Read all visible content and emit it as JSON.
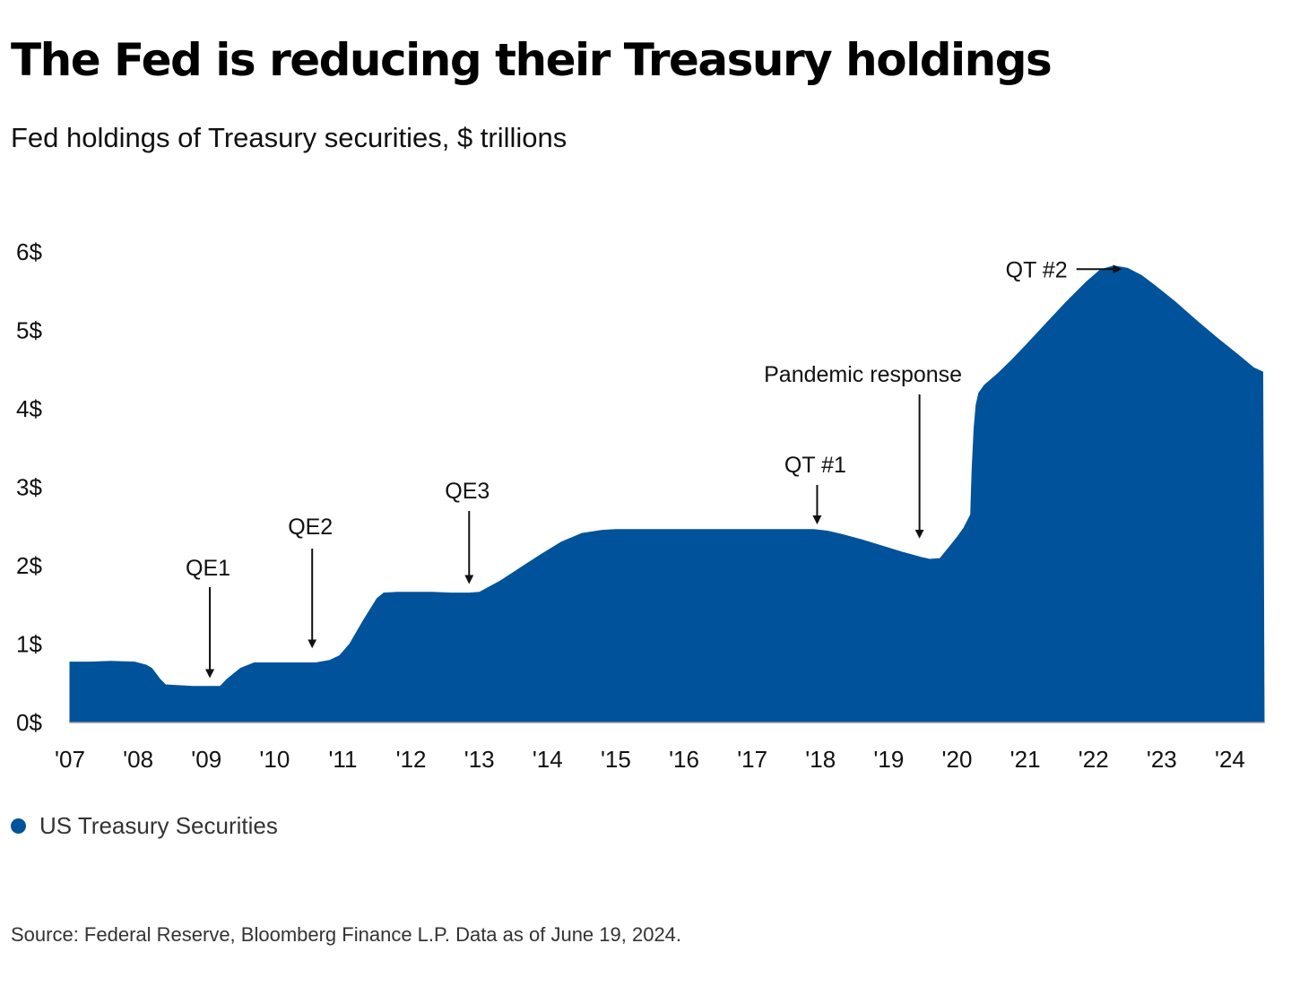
{
  "chart_data": {
    "type": "area",
    "title": "The Fed is reducing their Treasury holdings",
    "subtitle": "Fed holdings of Treasury securities, $ trillions",
    "xlabel": "",
    "ylabel": "",
    "ylim": [
      0,
      6
    ],
    "xlim": [
      2007.0,
      2024.5
    ],
    "grid": false,
    "y_ticks": [
      {
        "value": 0,
        "label": "0$"
      },
      {
        "value": 1,
        "label": "1$"
      },
      {
        "value": 2,
        "label": "2$"
      },
      {
        "value": 3,
        "label": "3$"
      },
      {
        "value": 4,
        "label": "4$"
      },
      {
        "value": 5,
        "label": "5$"
      },
      {
        "value": 6,
        "label": "6$"
      }
    ],
    "x_ticks": [
      {
        "value": 2007,
        "label": "'07"
      },
      {
        "value": 2008,
        "label": "'08"
      },
      {
        "value": 2009,
        "label": "'09"
      },
      {
        "value": 2010,
        "label": "'10"
      },
      {
        "value": 2011,
        "label": "'11"
      },
      {
        "value": 2012,
        "label": "'12"
      },
      {
        "value": 2013,
        "label": "'13"
      },
      {
        "value": 2014,
        "label": "'14"
      },
      {
        "value": 2015,
        "label": "'15"
      },
      {
        "value": 2016,
        "label": "'16"
      },
      {
        "value": 2017,
        "label": "'17"
      },
      {
        "value": 2018,
        "label": "'18"
      },
      {
        "value": 2019,
        "label": "'19"
      },
      {
        "value": 2020,
        "label": "'20"
      },
      {
        "value": 2021,
        "label": "'21"
      },
      {
        "value": 2022,
        "label": "'22"
      },
      {
        "value": 2023,
        "label": "'23"
      },
      {
        "value": 2024,
        "label": "'24"
      }
    ],
    "series": [
      {
        "name": "US Treasury Securities",
        "color": "#00529b",
        "x": [
          2007.0,
          2007.3,
          2007.6,
          2007.95,
          2008.12,
          2008.2,
          2008.32,
          2008.4,
          2008.6,
          2008.8,
          2009.0,
          2009.2,
          2009.3,
          2009.5,
          2009.7,
          2010.0,
          2010.3,
          2010.6,
          2010.8,
          2010.95,
          2011.1,
          2011.3,
          2011.5,
          2011.6,
          2011.8,
          2012.0,
          2012.3,
          2012.6,
          2012.85,
          2013.0,
          2013.3,
          2013.6,
          2013.9,
          2014.2,
          2014.5,
          2014.8,
          2015.0,
          2015.5,
          2016.0,
          2016.5,
          2017.0,
          2017.5,
          2017.9,
          2018.1,
          2018.3,
          2018.6,
          2018.9,
          2019.2,
          2019.5,
          2019.6,
          2019.75,
          2019.9,
          2020.0,
          2020.1,
          2020.2,
          2020.22,
          2020.25,
          2020.28,
          2020.32,
          2020.4,
          2020.6,
          2020.8,
          2021.0,
          2021.3,
          2021.6,
          2021.9,
          2022.1,
          2022.3,
          2022.5,
          2022.7,
          2022.9,
          2023.2,
          2023.5,
          2023.8,
          2024.1,
          2024.35,
          2024.48,
          2024.5
        ],
        "values": [
          0.77,
          0.77,
          0.78,
          0.77,
          0.73,
          0.69,
          0.55,
          0.48,
          0.47,
          0.46,
          0.46,
          0.46,
          0.55,
          0.69,
          0.76,
          0.76,
          0.76,
          0.76,
          0.79,
          0.85,
          1.0,
          1.3,
          1.58,
          1.65,
          1.66,
          1.66,
          1.66,
          1.65,
          1.65,
          1.66,
          1.8,
          1.97,
          2.14,
          2.3,
          2.41,
          2.45,
          2.46,
          2.46,
          2.46,
          2.46,
          2.46,
          2.46,
          2.46,
          2.44,
          2.4,
          2.33,
          2.25,
          2.17,
          2.1,
          2.08,
          2.09,
          2.25,
          2.36,
          2.48,
          2.65,
          3.2,
          3.75,
          4.05,
          4.2,
          4.3,
          4.45,
          4.62,
          4.8,
          5.08,
          5.36,
          5.62,
          5.77,
          5.82,
          5.79,
          5.7,
          5.57,
          5.36,
          5.13,
          4.91,
          4.7,
          4.52,
          4.47,
          0
        ]
      }
    ],
    "annotations": [
      {
        "label": "QE1",
        "x": 2009.05,
        "y": 0.6
      },
      {
        "label": "QE2",
        "x": 2010.55,
        "y": 0.98
      },
      {
        "label": "QE3",
        "x": 2012.85,
        "y": 1.8
      },
      {
        "label": "QT #1",
        "x": 2017.95,
        "y": 2.56
      },
      {
        "label": "Pandemic response",
        "x": 2019.45,
        "y": 2.38
      },
      {
        "label": "QT #2",
        "x": 2021.75,
        "y": 5.78
      }
    ],
    "legend": {
      "position": "bottom-left"
    }
  },
  "source_text": "Source: Federal Reserve, Bloomberg Finance L.P. Data as of June 19, 2024."
}
